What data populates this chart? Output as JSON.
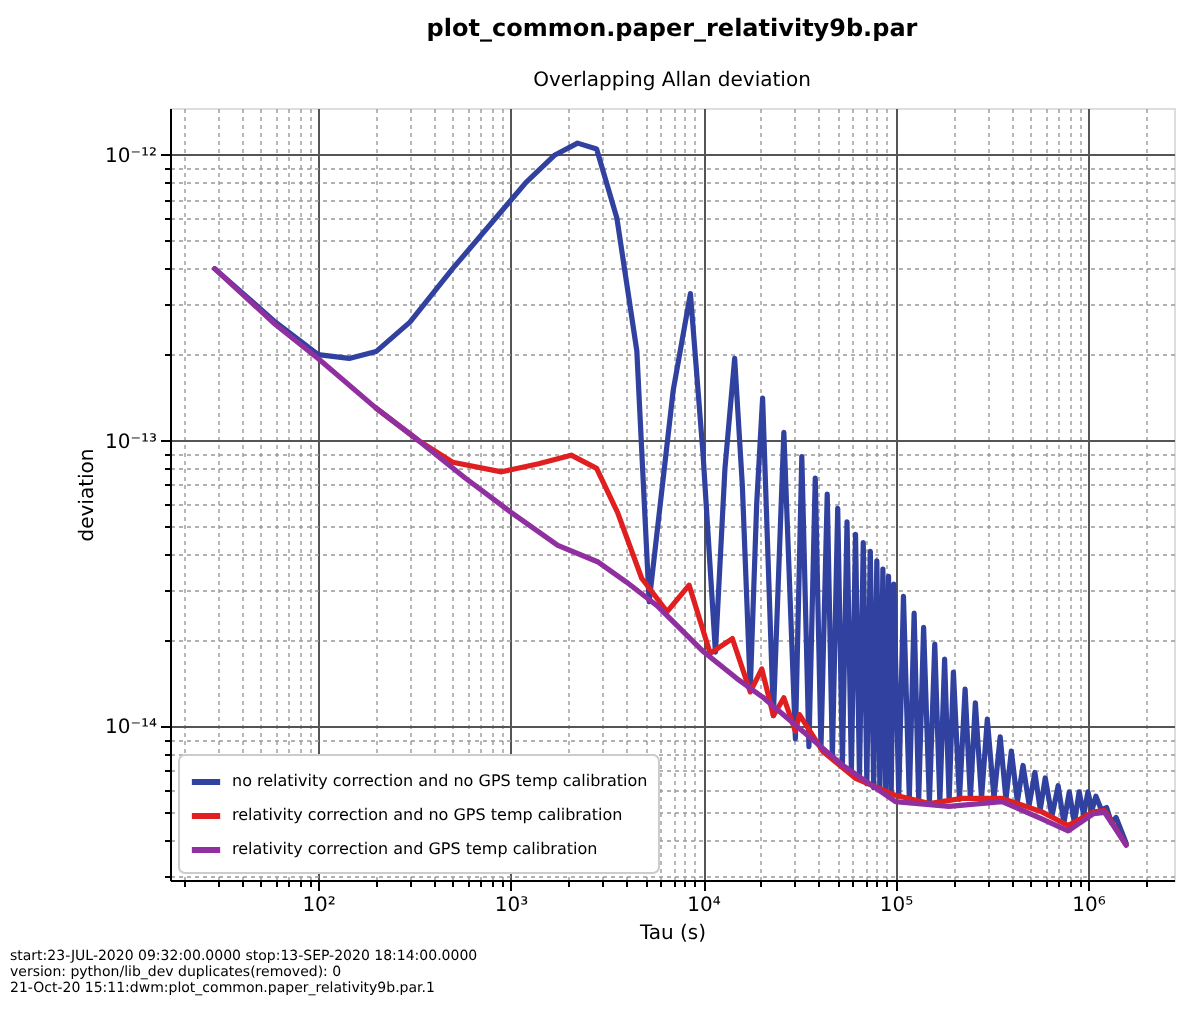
{
  "chart_data": {
    "type": "line",
    "title": "plot_common.paper_relativity9b.par",
    "subtitle": "Overlapping Allan deviation",
    "xlabel": "Tau (s)",
    "ylabel": "deviation",
    "log": "xy",
    "grid": true,
    "legend": "bottom left",
    "line_style": "solid",
    "marker": "none",
    "xlim": [
      17,
      2800000
    ],
    "ylim": [
      2.9e-15,
      1.46e-12
    ],
    "xticks": [
      {
        "value": 20,
        "label": null
      },
      {
        "value": 30,
        "label": null
      },
      {
        "value": 40,
        "label": null
      },
      {
        "value": 50,
        "label": null
      },
      {
        "value": 60,
        "label": null
      },
      {
        "value": 70,
        "label": null
      },
      {
        "value": 80,
        "label": null
      },
      {
        "value": 90,
        "label": null
      },
      {
        "value": 100,
        "label": "10²"
      },
      {
        "value": 200,
        "label": null
      },
      {
        "value": 300,
        "label": null
      },
      {
        "value": 400,
        "label": null
      },
      {
        "value": 500,
        "label": null
      },
      {
        "value": 600,
        "label": null
      },
      {
        "value": 700,
        "label": null
      },
      {
        "value": 800,
        "label": null
      },
      {
        "value": 900,
        "label": null
      },
      {
        "value": 1000,
        "label": "10³"
      },
      {
        "value": 2000,
        "label": null
      },
      {
        "value": 3000,
        "label": null
      },
      {
        "value": 4000,
        "label": null
      },
      {
        "value": 5000,
        "label": null
      },
      {
        "value": 6000,
        "label": null
      },
      {
        "value": 7000,
        "label": null
      },
      {
        "value": 8000,
        "label": null
      },
      {
        "value": 9000,
        "label": null
      },
      {
        "value": 10000,
        "label": "10⁴"
      },
      {
        "value": 20000,
        "label": null
      },
      {
        "value": 30000,
        "label": null
      },
      {
        "value": 40000,
        "label": null
      },
      {
        "value": 50000,
        "label": null
      },
      {
        "value": 60000,
        "label": null
      },
      {
        "value": 70000,
        "label": null
      },
      {
        "value": 80000,
        "label": null
      },
      {
        "value": 90000,
        "label": null
      },
      {
        "value": 100000,
        "label": "10⁵"
      },
      {
        "value": 200000,
        "label": null
      },
      {
        "value": 300000,
        "label": null
      },
      {
        "value": 400000,
        "label": null
      },
      {
        "value": 500000,
        "label": null
      },
      {
        "value": 600000,
        "label": null
      },
      {
        "value": 700000,
        "label": null
      },
      {
        "value": 800000,
        "label": null
      },
      {
        "value": 900000,
        "label": null
      },
      {
        "value": 1000000,
        "label": "10⁶"
      },
      {
        "value": 2000000,
        "label": null
      }
    ],
    "yticks": [
      {
        "value": 3e-15,
        "label": null
      },
      {
        "value": 4e-15,
        "label": null
      },
      {
        "value": 5e-15,
        "label": null
      },
      {
        "value": 6e-15,
        "label": null
      },
      {
        "value": 7e-15,
        "label": null
      },
      {
        "value": 8e-15,
        "label": null
      },
      {
        "value": 9e-15,
        "label": null
      },
      {
        "value": 1e-14,
        "label": "10⁻¹⁴"
      },
      {
        "value": 2e-14,
        "label": null
      },
      {
        "value": 3e-14,
        "label": null
      },
      {
        "value": 4e-14,
        "label": null
      },
      {
        "value": 5e-14,
        "label": null
      },
      {
        "value": 6e-14,
        "label": null
      },
      {
        "value": 7e-14,
        "label": null
      },
      {
        "value": 8e-14,
        "label": null
      },
      {
        "value": 9e-14,
        "label": null
      },
      {
        "value": 1e-13,
        "label": "10⁻¹³"
      },
      {
        "value": 2e-13,
        "label": null
      },
      {
        "value": 3e-13,
        "label": null
      },
      {
        "value": 4e-13,
        "label": null
      },
      {
        "value": 5e-13,
        "label": null
      },
      {
        "value": 6e-13,
        "label": null
      },
      {
        "value": 7e-13,
        "label": null
      },
      {
        "value": 8e-13,
        "label": null
      },
      {
        "value": 9e-13,
        "label": null
      },
      {
        "value": 1e-12,
        "label": "10⁻¹²"
      }
    ],
    "series": [
      {
        "name": "no relativity correction and no GPS temp calibration",
        "color": "#3041a0",
        "x": [
          29,
          60,
          100,
          145,
          200,
          300,
          500,
          800,
          1200,
          1700,
          2230,
          2800,
          3570,
          4530,
          5250,
          7000,
          8600,
          10000,
          11600,
          13000,
          14600,
          16000,
          17600,
          19000,
          20400,
          23200,
          26300,
          30200,
          32600,
          35500,
          38300,
          41000,
          44200,
          47000,
          50100,
          53000,
          56000,
          59000,
          62000,
          65000,
          68000,
          71000,
          74000,
          77000,
          80000,
          83000,
          86000,
          89000,
          92000,
          95000,
          98000,
          104000,
          110000,
          118000,
          125000,
          132000,
          140000,
          150000,
          160000,
          170000,
          180000,
          190000,
          200000,
          215000,
          230000,
          245000,
          260000,
          280000,
          300000,
          325000,
          350000,
          375000,
          400000,
          430000,
          460000,
          495000,
          530000,
          565000,
          600000,
          650000,
          700000,
          750000,
          800000,
          850000,
          900000,
          950000,
          1000000,
          1050000,
          1100000,
          1175000,
          1250000,
          1325000,
          1400000,
          1580000
        ],
        "values": [
          4e-13,
          2.6e-13,
          2e-13,
          1.94e-13,
          2.05e-13,
          2.6e-13,
          4e-13,
          5.8e-13,
          8e-13,
          1e-12,
          1.1e-12,
          1.05e-12,
          6e-13,
          2.06e-13,
          2.73e-14,
          1.5e-13,
          3.27e-13,
          9e-14,
          1.82e-14,
          8e-14,
          1.94e-13,
          7e-14,
          1.35e-14,
          6e-14,
          1.41e-13,
          1.09e-14,
          1.07e-13,
          9.05e-15,
          8.8e-14,
          8.5e-15,
          7.4e-14,
          8.4e-15,
          6.5e-14,
          7.8e-15,
          5.8e-14,
          7.4e-15,
          5.2e-14,
          7e-15,
          4.7e-14,
          6.6e-15,
          4.4e-14,
          6.3e-15,
          4.1e-14,
          6.1e-15,
          3.8e-14,
          6e-15,
          3.55e-14,
          5.9e-15,
          3.35e-14,
          5.8e-15,
          3.15e-14,
          5.7e-15,
          2.85e-14,
          5.6e-15,
          2.49e-14,
          5.5e-15,
          2.22e-14,
          5.4e-15,
          1.94e-14,
          5.45e-15,
          1.72e-14,
          5.5e-15,
          1.55e-14,
          5.55e-15,
          1.35e-14,
          5.6e-15,
          1.21e-14,
          5.6e-15,
          1.06e-14,
          5.6e-15,
          9.2e-15,
          5.55e-15,
          8.2e-15,
          5.45e-15,
          7.3e-15,
          5.3e-15,
          6.9e-15,
          5.1e-15,
          6.6e-15,
          4.85e-15,
          6.2e-15,
          4.6e-15,
          5.9e-15,
          4.6e-15,
          5.9e-15,
          4.9e-15,
          5.9e-15,
          5.1e-15,
          5.7e-15,
          5.1e-15,
          5.2e-15,
          4.6e-15,
          4.8e-15,
          3.9e-15
        ]
      },
      {
        "name": "relativity correction and no GPS temp calibration",
        "color": "#e02020",
        "x": [
          200,
          333,
          500,
          898,
          1400,
          2065,
          2800,
          3600,
          4800,
          6510,
          8470,
          10900,
          14200,
          17600,
          20200,
          23200,
          26300,
          30200,
          31700,
          42100,
          62400,
          100000,
          150000,
          222000,
          358000,
          576000,
          789000,
          1070000,
          1220000,
          1580000
        ],
        "values": [
          1.3e-13,
          1e-13,
          8.4e-14,
          7.78e-14,
          8.3e-14,
          8.9e-14,
          8e-14,
          5.6e-14,
          3.3e-14,
          2.52e-14,
          3.12e-14,
          1.8e-14,
          2.03e-14,
          1.32e-14,
          1.59e-14,
          1.09e-14,
          1.26e-14,
          9.6e-15,
          1.1e-14,
          8.15e-15,
          6.56e-15,
          5.74e-15,
          5.37e-15,
          5.6e-15,
          5.6e-15,
          5.02e-15,
          4.5e-15,
          5.02e-15,
          5.07e-15,
          3.84e-15
        ]
      },
      {
        "name": "relativity correction and GPS temp calibration",
        "color": "#9030a0",
        "x": [
          29,
          60,
          100,
          200,
          333,
          581,
          1010,
          1760,
          2830,
          4000,
          5750,
          10100,
          15000,
          20600,
          33100,
          53300,
          100000,
          190000,
          358000,
          576000,
          789000,
          1070000,
          1220000,
          1580000
        ],
        "values": [
          4e-13,
          2.55e-13,
          1.94e-13,
          1.3e-13,
          1e-13,
          7.4e-14,
          5.6e-14,
          4.3e-14,
          3.77e-14,
          3.2e-14,
          2.65e-14,
          1.82e-14,
          1.47e-14,
          1.26e-14,
          9.6e-15,
          7.3e-15,
          5.45e-15,
          5.25e-15,
          5.45e-15,
          4.75e-15,
          4.31e-15,
          4.95e-15,
          5e-15,
          3.84e-15
        ]
      }
    ],
    "annotations": [
      "start:23-JUL-2020 09:32:00.0000 stop:13-SEP-2020 18:14:00.0000",
      "version: python/lib_dev duplicates(removed): 0",
      "21-Oct-20 15:11:dwm:plot_common.paper_relativity9b.par.1"
    ]
  }
}
